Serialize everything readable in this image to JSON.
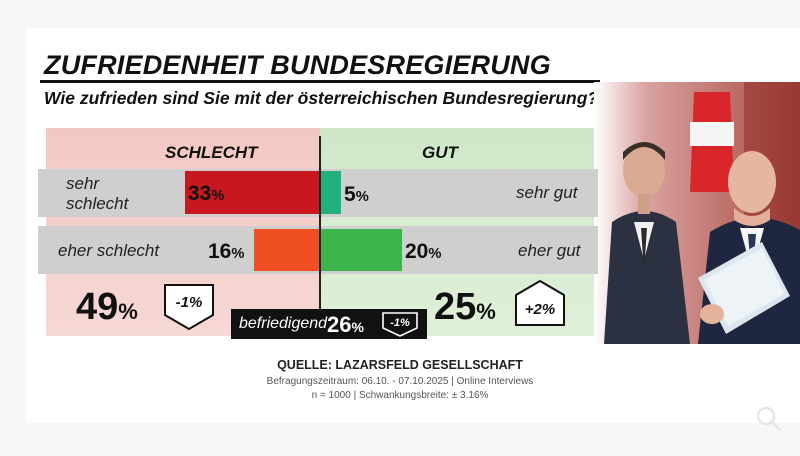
{
  "header": {
    "title": "ZUFRIEDENHEIT BUNDESREGIERUNG",
    "question": "Wie zufrieden sind Sie mit der österreichischen Bundesregierung?"
  },
  "colors": {
    "bad_panel": "#f5cfcb",
    "good_panel": "#d6ebd0",
    "sehr_schlecht_bar": "#c8171e",
    "eher_schlecht_bar": "#f04e23",
    "sehr_gut_bar": "#22b07d",
    "eher_gut_bar": "#3cb54a"
  },
  "chart_data": {
    "type": "bar",
    "groups": [
      "SCHLECHT",
      "GUT"
    ],
    "categories": [
      "sehr schlecht",
      "eher schlecht",
      "sehr gut",
      "eher gut"
    ],
    "values": [
      33,
      16,
      5,
      20
    ],
    "unit": "%",
    "totals": {
      "schlecht": {
        "value": 49,
        "change": "-1%"
      },
      "gut": {
        "value": 25,
        "change": "+2%"
      },
      "befriedigend": {
        "label": "befriedigend",
        "value": 26,
        "change": "-1%"
      }
    }
  },
  "labels": {
    "schlecht_head": "SCHLECHT",
    "gut_head": "GUT",
    "sehr_schlecht_1": "sehr",
    "sehr_schlecht_2": "schlecht",
    "eher_schlecht": "eher schlecht",
    "sehr_gut": "sehr gut",
    "eher_gut": "eher gut",
    "unit": "%"
  },
  "source": {
    "head": "QUELLE:  LAZARSFELD GESELLSCHAFT",
    "line1": "Befragungszeitraum: 06.10. - 07.10.2025  | Online Interviews",
    "line2": "n = 1000 |  Schwankungsbreite: ± 3.16%"
  }
}
